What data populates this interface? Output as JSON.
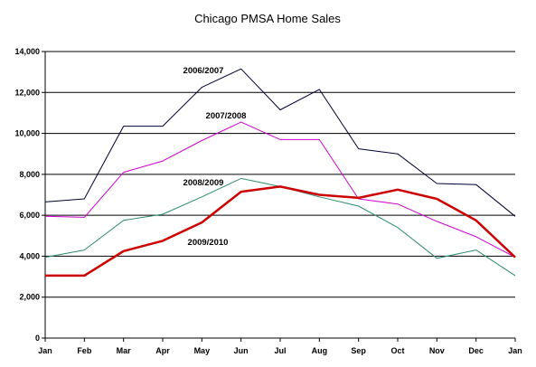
{
  "chart_data": {
    "type": "line",
    "title": "Chicago PMSA Home Sales",
    "xlabel": "",
    "ylabel": "",
    "categories": [
      "Jan",
      "Feb",
      "Mar",
      "Apr",
      "May",
      "Jun",
      "Jul",
      "Aug",
      "Sep",
      "Oct",
      "Nov",
      "Dec",
      "Jan"
    ],
    "ylim": [
      0,
      14000
    ],
    "yticks": [
      0,
      2000,
      4000,
      6000,
      8000,
      10000,
      12000,
      14000
    ],
    "ytick_labels": [
      "0",
      "2,000",
      "4,000",
      "6,000",
      "8,000",
      "10,000",
      "12,000",
      "14,000"
    ],
    "grid": "horizontal",
    "legend": "inline labels",
    "series": [
      {
        "name": "2006/2007",
        "color": "#000033",
        "values": [
          6650,
          6800,
          10350,
          10350,
          12250,
          13150,
          11150,
          12150,
          9250,
          9000,
          7550,
          7500,
          5950
        ]
      },
      {
        "name": "2007/2008",
        "color": "#cc00cc",
        "values": [
          5950,
          5900,
          8100,
          8650,
          9650,
          10550,
          9700,
          9700,
          6800,
          6550,
          5700,
          4950,
          3950
        ]
      },
      {
        "name": "2008/2009",
        "color": "#2e8b72",
        "values": [
          3950,
          4300,
          5750,
          6050,
          6900,
          7800,
          7400,
          6900,
          6450,
          5400,
          3900,
          4300,
          3050
        ]
      },
      {
        "name": "2009/2010",
        "color": "#cc0000",
        "values": [
          3050,
          3050,
          4250,
          4750,
          5650,
          7150,
          7400,
          7000,
          6850,
          7250,
          6800,
          5750,
          3950
        ]
      }
    ]
  }
}
